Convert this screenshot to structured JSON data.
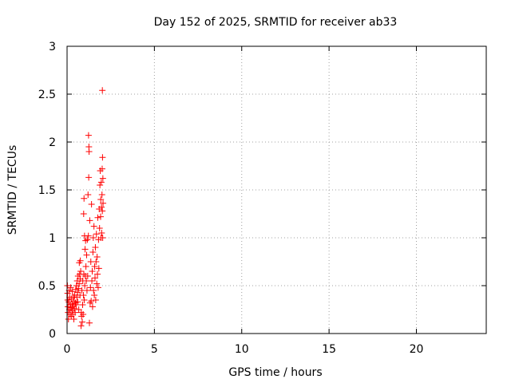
{
  "chart_data": {
    "type": "scatter",
    "title": "Day 152 of 2025, SRMTID for receiver ab33",
    "xlabel": "GPS time / hours",
    "ylabel": "SRMTID / TECUs",
    "xlim": [
      0,
      24
    ],
    "ylim": [
      0,
      3
    ],
    "xticks": [
      0,
      5,
      10,
      15,
      20
    ],
    "yticks": [
      0,
      0.5,
      1,
      1.5,
      2,
      2.5,
      3
    ],
    "grid": true,
    "marker": "+",
    "series": [
      {
        "name": "SRMTID",
        "color": "#ff0000",
        "points": [
          [
            0.02,
            0.5
          ],
          [
            0.03,
            0.42
          ],
          [
            0.04,
            0.35
          ],
          [
            0.05,
            0.28
          ],
          [
            0.06,
            0.22
          ],
          [
            0.08,
            0.15
          ],
          [
            0.1,
            0.33
          ],
          [
            0.12,
            0.45
          ],
          [
            0.14,
            0.25
          ],
          [
            0.15,
            0.38
          ],
          [
            0.17,
            0.2
          ],
          [
            0.19,
            0.3
          ],
          [
            0.21,
            0.48
          ],
          [
            0.22,
            0.27
          ],
          [
            0.24,
            0.18
          ],
          [
            0.26,
            0.36
          ],
          [
            0.28,
            0.24
          ],
          [
            0.3,
            0.31
          ],
          [
            0.31,
            0.44
          ],
          [
            0.33,
            0.2
          ],
          [
            0.35,
            0.28
          ],
          [
            0.37,
            0.38
          ],
          [
            0.39,
            0.15
          ],
          [
            0.4,
            0.34
          ],
          [
            0.42,
            0.26
          ],
          [
            0.44,
            0.4
          ],
          [
            0.46,
            0.22
          ],
          [
            0.48,
            0.32
          ],
          [
            0.5,
            0.46
          ],
          [
            0.52,
            0.3
          ],
          [
            0.54,
            0.5
          ],
          [
            0.56,
            0.38
          ],
          [
            0.58,
            0.55
          ],
          [
            0.6,
            0.43
          ],
          [
            0.61,
            0.33
          ],
          [
            0.63,
            0.6
          ],
          [
            0.65,
            0.47
          ],
          [
            0.67,
            0.25
          ],
          [
            0.69,
            0.52
          ],
          [
            0.7,
            0.74
          ],
          [
            0.72,
            0.62
          ],
          [
            0.74,
            0.4
          ],
          [
            0.75,
            0.57
          ],
          [
            0.76,
            0.76
          ],
          [
            0.78,
            0.65
          ],
          [
            0.8,
            0.08
          ],
          [
            0.81,
            0.22
          ],
          [
            0.83,
            0.18
          ],
          [
            0.85,
            0.45
          ],
          [
            0.87,
            0.12
          ],
          [
            0.89,
            0.3
          ],
          [
            0.9,
            0.55
          ],
          [
            0.92,
            0.2
          ],
          [
            0.94,
            0.4
          ],
          [
            0.95,
            1.25
          ],
          [
            0.96,
            0.62
          ],
          [
            0.97,
            1.41
          ],
          [
            0.98,
            0.35
          ],
          [
            1.0,
            1.02
          ],
          [
            1.01,
            0.5
          ],
          [
            1.03,
            0.88
          ],
          [
            1.05,
            0.6
          ],
          [
            1.06,
            0.97
          ],
          [
            1.08,
            0.7
          ],
          [
            1.1,
            0.55
          ],
          [
            1.12,
            0.82
          ],
          [
            1.14,
            0.45
          ],
          [
            1.16,
            0.98
          ],
          [
            1.18,
            0.6
          ],
          [
            1.2,
            1.45
          ],
          [
            1.22,
            1.02
          ],
          [
            1.23,
            2.07
          ],
          [
            1.24,
            1.63
          ],
          [
            1.25,
            1.95
          ],
          [
            1.26,
            1.9
          ],
          [
            1.28,
            0.11
          ],
          [
            1.3,
            1.18
          ],
          [
            1.32,
            0.32
          ],
          [
            1.34,
            0.48
          ],
          [
            1.36,
            0.75
          ],
          [
            1.38,
            0.34
          ],
          [
            1.4,
            1.35
          ],
          [
            1.42,
            0.55
          ],
          [
            1.44,
            0.65
          ],
          [
            1.46,
            0.28
          ],
          [
            1.48,
            0.85
          ],
          [
            1.5,
            1.0
          ],
          [
            1.52,
            0.45
          ],
          [
            1.54,
            1.12
          ],
          [
            1.56,
            0.4
          ],
          [
            1.58,
            0.7
          ],
          [
            1.6,
            0.58
          ],
          [
            1.62,
            0.9
          ],
          [
            1.64,
            0.35
          ],
          [
            1.66,
            0.75
          ],
          [
            1.68,
            1.04
          ],
          [
            1.7,
            0.52
          ],
          [
            1.72,
            0.8
          ],
          [
            1.74,
            0.62
          ],
          [
            1.76,
            1.21
          ],
          [
            1.78,
            0.48
          ],
          [
            1.8,
            0.98
          ],
          [
            1.82,
            0.68
          ],
          [
            1.84,
            1.3
          ],
          [
            1.86,
            1.1
          ],
          [
            1.88,
            1.55
          ],
          [
            1.9,
            1.7
          ],
          [
            1.92,
            1.22
          ],
          [
            1.93,
            1.4
          ],
          [
            1.94,
            1.0
          ],
          [
            1.96,
            1.58
          ],
          [
            1.97,
            1.32
          ],
          [
            1.98,
            1.05
          ],
          [
            2.0,
            1.45
          ],
          [
            2.01,
            1.72
          ],
          [
            2.02,
            1.28
          ],
          [
            2.03,
            1.84
          ],
          [
            2.04,
            1.0
          ],
          [
            2.05,
            1.62
          ],
          [
            2.06,
            1.36
          ],
          [
            2.02,
            2.54
          ]
        ]
      }
    ]
  }
}
